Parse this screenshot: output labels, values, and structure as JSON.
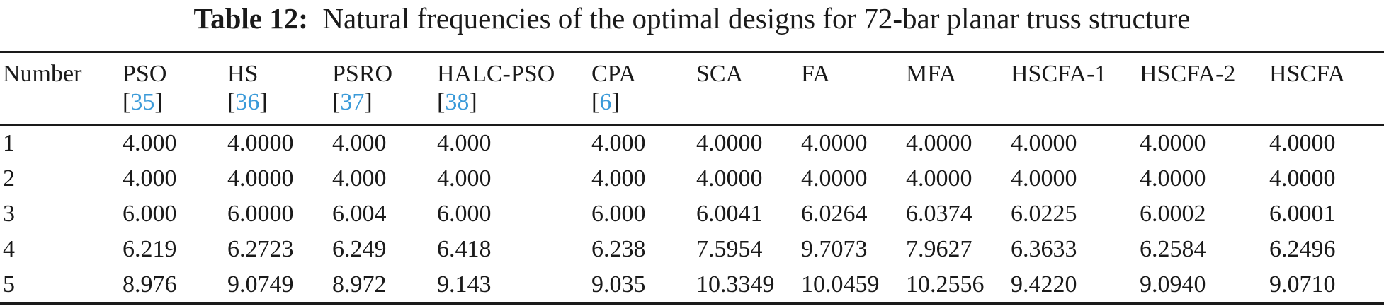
{
  "caption": {
    "label": "Table 12:",
    "text": "Natural frequencies of the optimal designs for 72-bar planar truss structure"
  },
  "columns": [
    {
      "name": "Number",
      "ref": ""
    },
    {
      "name": "PSO",
      "ref": "35"
    },
    {
      "name": "HS",
      "ref": "36"
    },
    {
      "name": "PSRO",
      "ref": "37"
    },
    {
      "name": "HALC-PSO",
      "ref": "38"
    },
    {
      "name": "CPA",
      "ref": "6"
    },
    {
      "name": "SCA",
      "ref": ""
    },
    {
      "name": "FA",
      "ref": ""
    },
    {
      "name": "MFA",
      "ref": ""
    },
    {
      "name": "HSCFA-1",
      "ref": ""
    },
    {
      "name": "HSCFA-2",
      "ref": ""
    },
    {
      "name": "HSCFA",
      "ref": ""
    }
  ],
  "rows": [
    [
      "1",
      "4.000",
      "4.0000",
      "4.000",
      "4.000",
      "4.000",
      "4.0000",
      "4.0000",
      "4.0000",
      "4.0000",
      "4.0000",
      "4.0000"
    ],
    [
      "2",
      "4.000",
      "4.0000",
      "4.000",
      "4.000",
      "4.000",
      "4.0000",
      "4.0000",
      "4.0000",
      "4.0000",
      "4.0000",
      "4.0000"
    ],
    [
      "3",
      "6.000",
      "6.0000",
      "6.004",
      "6.000",
      "6.000",
      "6.0041",
      "6.0264",
      "6.0374",
      "6.0225",
      "6.0002",
      "6.0001"
    ],
    [
      "4",
      "6.219",
      "6.2723",
      "6.249",
      "6.418",
      "6.238",
      "7.5954",
      "9.7073",
      "7.9627",
      "6.3633",
      "6.2584",
      "6.2496"
    ],
    [
      "5",
      "8.976",
      "9.0749",
      "8.972",
      "9.143",
      "9.035",
      "10.3349",
      "10.0459",
      "10.2556",
      "9.4220",
      "9.0940",
      "9.0710"
    ]
  ]
}
